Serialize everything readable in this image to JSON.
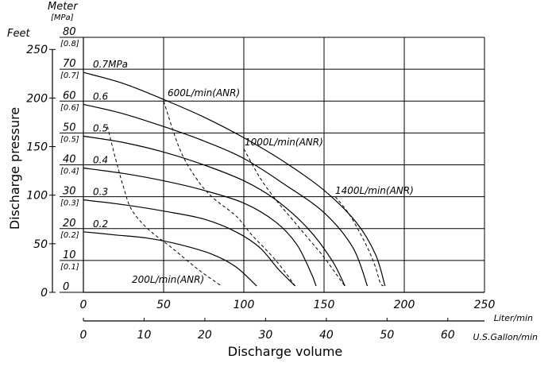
{
  "chart_data": {
    "type": "line",
    "xlabel": "Discharge volume",
    "ylabel": "Discharge pressure",
    "x_primary": {
      "unit": "Liter/min",
      "ticks": [
        0,
        50,
        100,
        150,
        200,
        250
      ],
      "lim": [
        0,
        250
      ]
    },
    "x_secondary": {
      "unit": "U.S.Gallon/min",
      "ticks": [
        0,
        10,
        20,
        30,
        40,
        50,
        60
      ]
    },
    "y_left": {
      "unit": "Feet",
      "ticks": [
        0,
        50,
        100,
        150,
        200,
        250
      ]
    },
    "y_meter": {
      "unit": "Meter",
      "ticks": [
        0,
        10,
        20,
        30,
        40,
        50,
        60,
        70,
        80
      ],
      "lim": [
        0,
        80
      ]
    },
    "y_mpa": {
      "unit": "[MPa]",
      "ticks": [
        "[0.1]",
        "[0.2]",
        "[0.3]",
        "[0.4]",
        "[0.5]",
        "[0.6]",
        "[0.7]",
        "[0.8]"
      ]
    },
    "series": [
      {
        "name": "0.2",
        "points": [
          [
            0,
            19
          ],
          [
            20,
            18
          ],
          [
            40,
            17
          ],
          [
            60,
            15
          ],
          [
            80,
            12
          ],
          [
            95,
            8
          ],
          [
            108,
            2
          ]
        ]
      },
      {
        "name": "0.3",
        "points": [
          [
            0,
            29
          ],
          [
            25,
            27.5
          ],
          [
            50,
            25.5
          ],
          [
            75,
            23
          ],
          [
            95,
            19
          ],
          [
            110,
            14
          ],
          [
            122,
            7
          ],
          [
            132,
            2
          ]
        ]
      },
      {
        "name": "0.4",
        "points": [
          [
            0,
            39
          ],
          [
            25,
            37.3
          ],
          [
            50,
            35
          ],
          [
            75,
            32
          ],
          [
            100,
            28
          ],
          [
            120,
            22
          ],
          [
            133,
            15
          ],
          [
            142,
            6
          ],
          [
            145,
            2
          ]
        ]
      },
      {
        "name": "0.5",
        "points": [
          [
            0,
            49
          ],
          [
            25,
            47
          ],
          [
            50,
            44
          ],
          [
            75,
            40
          ],
          [
            100,
            35
          ],
          [
            120,
            29
          ],
          [
            140,
            20
          ],
          [
            155,
            10
          ],
          [
            163,
            2
          ]
        ]
      },
      {
        "name": "0.6",
        "points": [
          [
            0,
            59
          ],
          [
            25,
            56
          ],
          [
            50,
            52
          ],
          [
            75,
            47.5
          ],
          [
            100,
            42
          ],
          [
            125,
            34
          ],
          [
            150,
            25
          ],
          [
            168,
            14
          ],
          [
            177,
            2
          ]
        ]
      },
      {
        "name": "0.7MPa",
        "points": [
          [
            0,
            69
          ],
          [
            25,
            65.5
          ],
          [
            50,
            60.5
          ],
          [
            75,
            55
          ],
          [
            100,
            48.5
          ],
          [
            125,
            41
          ],
          [
            150,
            32
          ],
          [
            170,
            22
          ],
          [
            182,
            12
          ],
          [
            188,
            2
          ]
        ]
      }
    ],
    "air_lines": [
      {
        "name": "200L/min(ANR)",
        "points": [
          [
            15,
            52
          ],
          [
            20,
            42
          ],
          [
            25,
            33
          ],
          [
            30,
            26
          ],
          [
            40,
            20
          ],
          [
            55,
            14
          ],
          [
            72,
            7
          ],
          [
            86,
            2
          ]
        ]
      },
      {
        "name": "600L/min(ANR)",
        "points": [
          [
            50,
            60
          ],
          [
            60,
            45
          ],
          [
            70,
            36
          ],
          [
            80,
            30
          ],
          [
            95,
            24
          ],
          [
            105,
            18
          ],
          [
            120,
            10
          ],
          [
            132,
            2
          ]
        ]
      },
      {
        "name": "1000L/min(ANR)",
        "points": [
          [
            100,
            45
          ],
          [
            110,
            36
          ],
          [
            120,
            29
          ],
          [
            130,
            23
          ],
          [
            140,
            17
          ],
          [
            150,
            11
          ],
          [
            160,
            4
          ],
          [
            163,
            2
          ]
        ]
      },
      {
        "name": "1400L/min(ANR)",
        "points": [
          [
            157,
            30
          ],
          [
            165,
            25
          ],
          [
            172,
            19
          ],
          [
            178,
            13
          ],
          [
            182,
            8
          ],
          [
            185,
            3
          ],
          [
            187,
            2
          ]
        ]
      }
    ]
  }
}
